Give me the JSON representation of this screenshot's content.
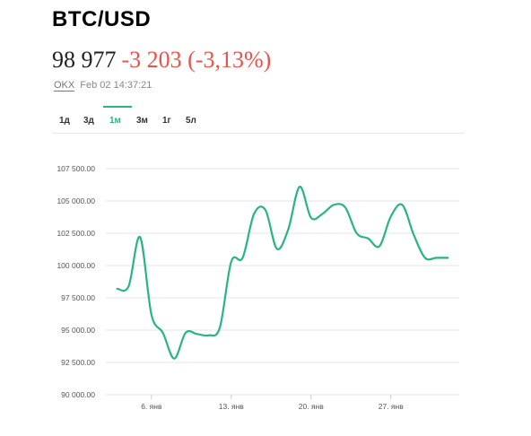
{
  "header": {
    "pair": "BTC/USD",
    "price": "98 977",
    "change": "-3 203 (-3,13%)",
    "exchange": "OKX",
    "timestamp": "Feb 02 14:37:21"
  },
  "tabs": [
    {
      "label": "1д",
      "active": false
    },
    {
      "label": "3д",
      "active": false
    },
    {
      "label": "1м",
      "active": true
    },
    {
      "label": "3м",
      "active": false
    },
    {
      "label": "1г",
      "active": false
    },
    {
      "label": "5л",
      "active": false
    }
  ],
  "colors": {
    "accent": "#2ab485",
    "negative": "#e8534b",
    "line": "#2ab485"
  },
  "chart_data": {
    "type": "line",
    "title": "",
    "xlabel": "",
    "ylabel": "",
    "ylim": [
      90000,
      107500
    ],
    "y_ticks": [
      90000,
      92500,
      95000,
      97500,
      100000,
      102500,
      105000,
      107500
    ],
    "y_tick_labels": [
      "90 000.00",
      "92 500.00",
      "95 000.00",
      "97 500.00",
      "100 000.00",
      "102 500.00",
      "105 000.00",
      "107 500.00"
    ],
    "x_ticks": [
      6,
      13,
      20,
      27
    ],
    "x_tick_labels": [
      "6. янв",
      "13. янв",
      "20. янв",
      "27. янв"
    ],
    "xlim": [
      2,
      33
    ],
    "grid": true,
    "series": [
      {
        "x": [
          3,
          4,
          5,
          6,
          7,
          8,
          9,
          10,
          11,
          12,
          13,
          14,
          15,
          16,
          17,
          18,
          19,
          20,
          21,
          22,
          23,
          24,
          25,
          26,
          27,
          28,
          29,
          30,
          31,
          32
        ],
        "y": [
          98200,
          98400,
          102200,
          96200,
          94800,
          92800,
          94800,
          94700,
          94600,
          95200,
          100300,
          100600,
          104000,
          104300,
          101300,
          102800,
          106100,
          103700,
          104000,
          104700,
          104500,
          102500,
          102100,
          101500,
          103800,
          104700,
          102400,
          100600,
          100600,
          100600
        ]
      }
    ]
  }
}
